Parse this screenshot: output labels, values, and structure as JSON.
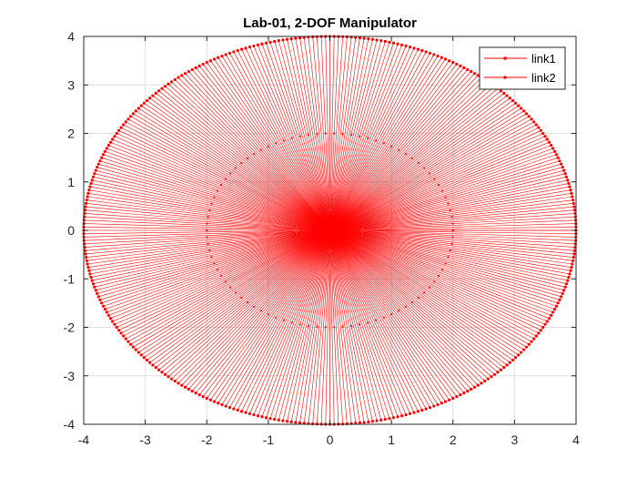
{
  "chart_data": {
    "type": "line",
    "title": "Lab-01, 2-DOF Manipulator",
    "xlabel": "",
    "ylabel": "",
    "xlim": [
      -4,
      4
    ],
    "ylim": [
      -4,
      4
    ],
    "xticks": [
      -4,
      -3,
      -2,
      -1,
      0,
      1,
      2,
      3,
      4
    ],
    "yticks": [
      -4,
      -3,
      -2,
      -1,
      0,
      1,
      2,
      3,
      4
    ],
    "grid": true,
    "legend_location": "top-right",
    "series": [
      {
        "name": "link1",
        "color": "#ff0000",
        "marker": "dot",
        "segment": "origin to elbow (length 2)"
      },
      {
        "name": "link2",
        "color": "#ff0000",
        "marker": "dot",
        "segment": "elbow to end-effector (length 2)"
      }
    ],
    "link_lengths": [
      2,
      2
    ],
    "theta1_range_deg": [
      0,
      360
    ],
    "end_effector_radius": 4
  },
  "colors": {
    "link1": "#ff0000",
    "link2": "#ff0000",
    "grid": "#dfdfdf",
    "axes": "#262626"
  }
}
